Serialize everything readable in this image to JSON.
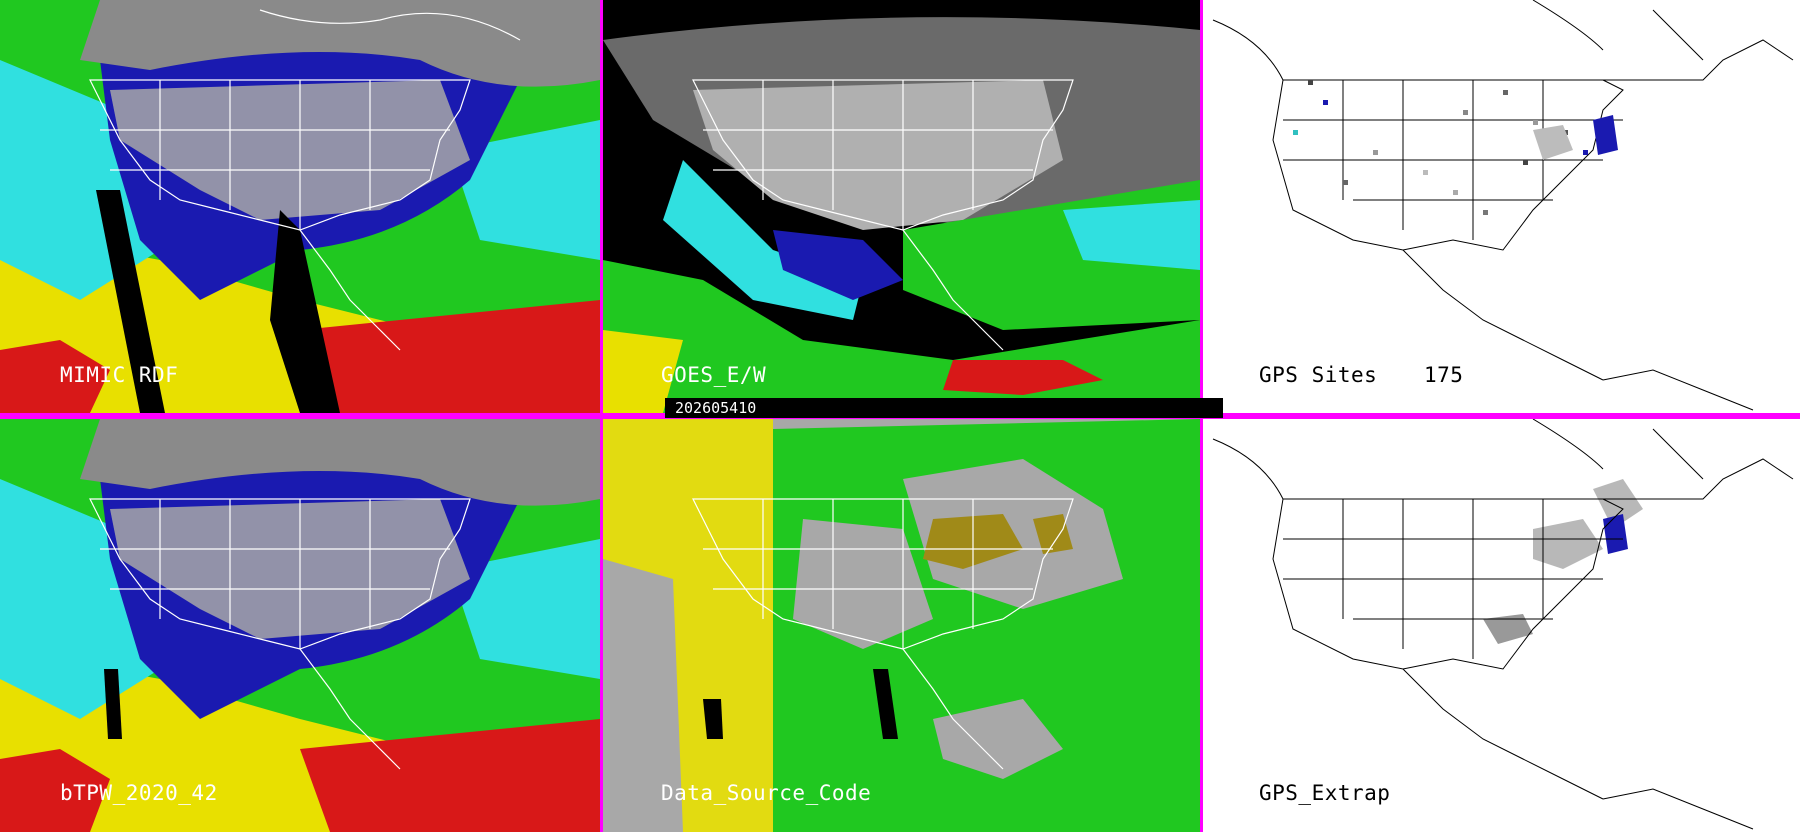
{
  "panels": {
    "mimic_rdf": {
      "label": "MIMIC RDF"
    },
    "goes_ew": {
      "label": "GOES_E/W"
    },
    "gps_sites": {
      "label": "GPS Sites",
      "count": "175"
    },
    "btpw": {
      "label": "bTPW_2020_42"
    },
    "data_source": {
      "label": "Data_Source_Code"
    },
    "gps_extrap": {
      "label": "GPS_Extrap"
    }
  },
  "timestamp": "202605410",
  "colors": {
    "divider": "#ff00ff",
    "map_outline": "#ffffff",
    "gps_outline": "#000000"
  },
  "icons": [
    "map-outline",
    "precipitable-water-field"
  ]
}
